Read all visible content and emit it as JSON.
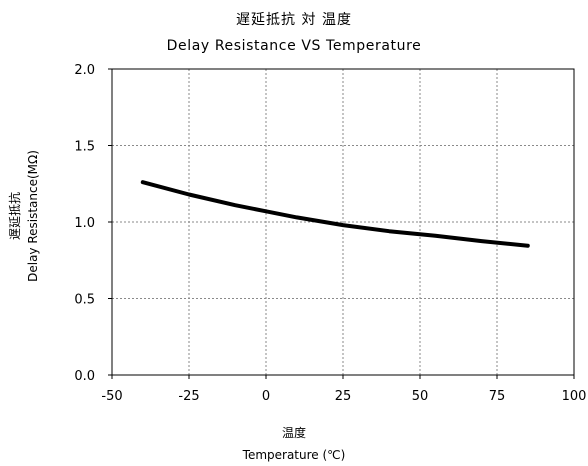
{
  "chart_data": {
    "type": "line",
    "title": "遅延抵抗 対 温度",
    "subtitle": "Delay Resistance VS Temperature",
    "ylabel_jp": "遅延抵抗",
    "ylabel": "Delay Resistance(MΩ)",
    "xlabel_jp": "温度",
    "xlabel": "Temperature (℃)",
    "xlim": [
      -50,
      100
    ],
    "ylim": [
      0.0,
      2.0
    ],
    "x_ticks": [
      "-50",
      "-25",
      "0",
      "25",
      "50",
      "75",
      "100"
    ],
    "y_ticks": [
      "0.0",
      "0.5",
      "1.0",
      "1.5",
      "2.0"
    ],
    "grid": true,
    "series": [
      {
        "color": "#000000",
        "x": [
          -40,
          -25,
          -10,
          0,
          10,
          25,
          40,
          55,
          70,
          85
        ],
        "y": [
          1.26,
          1.18,
          1.11,
          1.07,
          1.03,
          0.98,
          0.94,
          0.91,
          0.875,
          0.845
        ]
      }
    ]
  }
}
